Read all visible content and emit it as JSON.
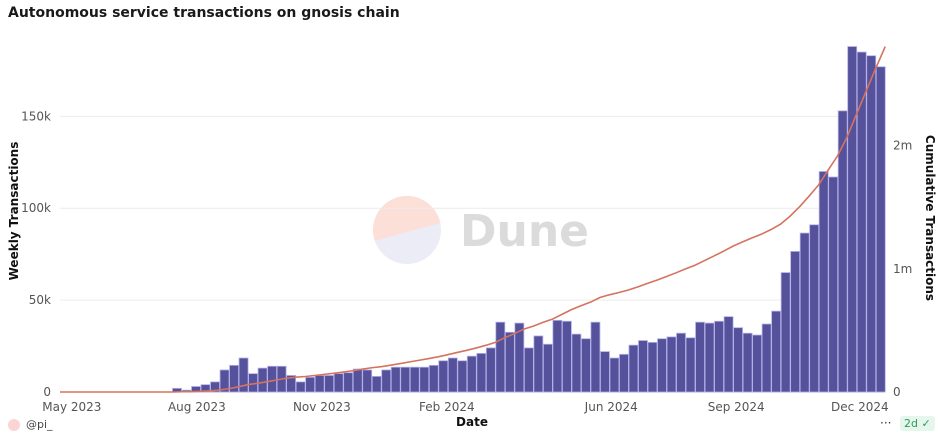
{
  "chart_data": {
    "type": "bar+line",
    "title": "Autonomous service transactions on gnosis chain",
    "xlabel": "Date",
    "ylabel": "Weekly Transactions",
    "y2label": "Cumulative Transactions",
    "x_start": "2023-07-24",
    "x_interval": "week",
    "x_ticks": [
      "May 2023",
      "Aug 2023",
      "Nov 2023",
      "Feb 2024",
      "Jun 2024",
      "Sep 2024",
      "Dec 2024"
    ],
    "y_ticks": [
      {
        "v": 0,
        "label": "0"
      },
      {
        "v": 50000,
        "label": "50k"
      },
      {
        "v": 100000,
        "label": "100k"
      },
      {
        "v": 150000,
        "label": "150k"
      }
    ],
    "y2_ticks": [
      {
        "v": 0,
        "label": "0"
      },
      {
        "v": 1000000,
        "label": "1m"
      },
      {
        "v": 2000000,
        "label": "2m"
      }
    ],
    "ylim": [
      0,
      197000
    ],
    "y2lim": [
      0,
      2940000
    ],
    "grid": true,
    "series": [
      {
        "name": "Weekly Transactions",
        "kind": "bar",
        "axis": "left",
        "color": "#55519a",
        "values": [
          2000,
          1000,
          3000,
          4000,
          5500,
          12000,
          14500,
          18500,
          10000,
          13000,
          14000,
          14000,
          9000,
          5500,
          8000,
          9000,
          9000,
          10000,
          10500,
          12500,
          12000,
          8500,
          12000,
          13500,
          13500,
          13500,
          13500,
          14500,
          17000,
          18500,
          17000,
          19500,
          21000,
          24000,
          38000,
          32500,
          37500,
          24000,
          30500,
          26000,
          39000,
          38500,
          31500,
          29000,
          38000,
          22000,
          18500,
          20500,
          25500,
          28000,
          27000,
          29000,
          30000,
          32000,
          29500,
          38000,
          37500,
          38500,
          41000,
          35000,
          32000,
          31000,
          37000,
          44000,
          65000,
          76500,
          86500,
          91000,
          120000,
          117000,
          153000,
          188000,
          185000,
          183000,
          177000
        ]
      },
      {
        "name": "Cumulative Transactions",
        "kind": "line",
        "axis": "right",
        "color": "#d4735e",
        "cumulative_of": "Weekly Transactions"
      }
    ]
  },
  "watermark": "Dune",
  "footer": {
    "user": "@pi_",
    "more": "···",
    "age_badge": "2d",
    "age_icon": "check-circle-icon"
  }
}
